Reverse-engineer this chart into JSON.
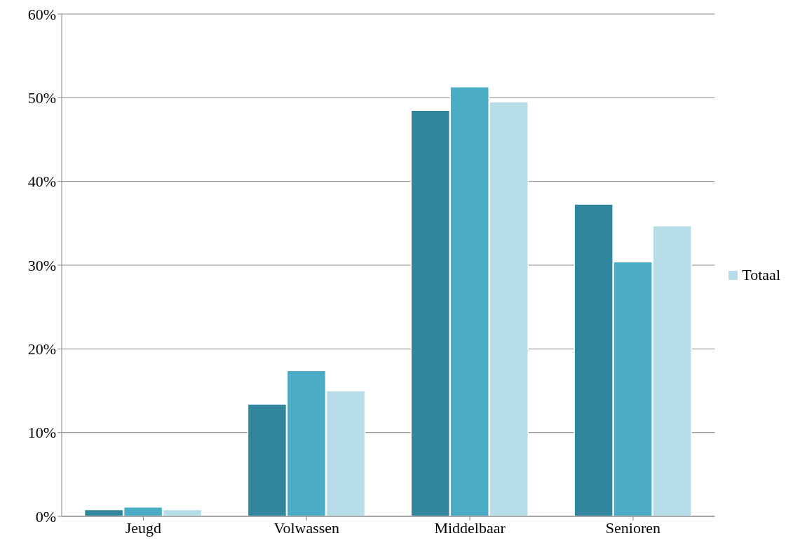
{
  "chart_data": {
    "type": "bar",
    "categories": [
      "Jeugd",
      "Volwassen",
      "Middelbaar",
      "Senioren"
    ],
    "series": [
      {
        "color": "#31859c",
        "values": [
          0.8,
          13.4,
          48.5,
          37.3
        ]
      },
      {
        "color": "#4bacc6",
        "values": [
          1.1,
          17.4,
          51.3,
          30.4
        ]
      },
      {
        "name": "Totaal",
        "color": "#b7dde8",
        "values": [
          0.8,
          15.0,
          49.5,
          34.7
        ]
      }
    ],
    "ylim": [
      0,
      60
    ],
    "yticks": [
      {
        "value": 0,
        "label": "0%"
      },
      {
        "value": 10,
        "label": "10%"
      },
      {
        "value": 20,
        "label": "20%"
      },
      {
        "value": 30,
        "label": "30%"
      },
      {
        "value": 40,
        "label": "40%"
      },
      {
        "value": 50,
        "label": "50%"
      },
      {
        "value": 60,
        "label": "60%"
      }
    ],
    "grid": "y",
    "legend": "right"
  }
}
